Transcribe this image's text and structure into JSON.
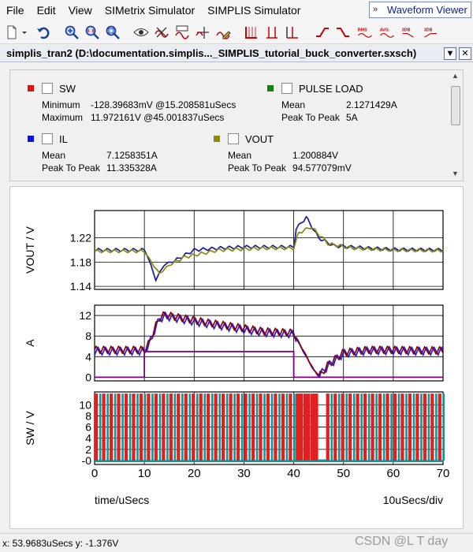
{
  "menu": {
    "items": [
      "File",
      "Edit",
      "View",
      "SIMetrix Simulator",
      "SIMPLIS Simulator"
    ],
    "waveform_viewer": "Waveform Viewer"
  },
  "toolbar": {
    "rms_label": "RMS",
    "avg_label": "AVG",
    "db_label": "3DB",
    "db2_label": "3DB",
    "icons": [
      "new-icon",
      "dropdown-icon",
      "undo-icon",
      "zoom-in-icon",
      "zoom-fit-icon",
      "zoom-box-icon",
      "eye-icon",
      "delete-curve-icon",
      "rename-curve-icon",
      "add-axis-icon",
      "edit-icon",
      "add-grid-icon",
      "cursor-icon",
      "cursor-2-icon",
      "table-icon",
      "rise-icon",
      "fall-icon",
      "rms-icon",
      "avg-icon",
      "3db-icon",
      "3db-2-icon"
    ]
  },
  "window": {
    "title": "simplis_tran2 (D:\\documentation.simplis..._SIMPLIS_tutorial_buck_converter.sxsch)"
  },
  "legend": {
    "sw": {
      "name": "SW",
      "color": "#e01010",
      "rows": [
        {
          "k": "Minimum",
          "v": "-128.39683mV @15.208581uSecs"
        },
        {
          "k": "Maximum",
          "v": "11.972161V @45.001837uSecs"
        }
      ]
    },
    "pulse": {
      "name": "PULSE LOAD",
      "color": "#108010",
      "rows": [
        {
          "k": "Mean",
          "v": "2.1271429A"
        },
        {
          "k": "Peak To Peak",
          "v": "5A"
        }
      ]
    },
    "il": {
      "name": "IL",
      "color": "#1010e0",
      "rows": [
        {
          "k": "Mean",
          "v": "7.1258351A"
        },
        {
          "k": "Peak To Peak",
          "v": "11.335328A"
        }
      ]
    },
    "vout": {
      "name": "VOUT",
      "color": "#8a8a10",
      "rows": [
        {
          "k": "Mean",
          "v": "1.200884V"
        },
        {
          "k": "Peak To Peak",
          "v": "94.577079mV"
        }
      ]
    }
  },
  "chart_data": [
    {
      "type": "line",
      "ylabel": "VOUT / V",
      "ylim": [
        1.135,
        1.265
      ],
      "yticks": [
        "1.14",
        "1.18",
        "1.22"
      ],
      "ytick_values": [
        1.14,
        1.18,
        1.22
      ],
      "xlim": [
        0,
        70
      ],
      "series": [
        {
          "color": "#1a1a9a",
          "x": [
            0,
            10,
            10.5,
            12.3,
            14,
            16,
            20,
            25,
            30,
            35,
            40,
            40.5,
            42.5,
            45,
            48,
            55,
            60,
            70
          ],
          "y": [
            1.2,
            1.2,
            1.193,
            1.151,
            1.176,
            1.182,
            1.2,
            1.203,
            1.205,
            1.205,
            1.205,
            1.235,
            1.254,
            1.22,
            1.207,
            1.203,
            1.201,
            1.2
          ]
        },
        {
          "color": "#8a8a10",
          "x": [
            0,
            10,
            11,
            13,
            15,
            18,
            25,
            35,
            40,
            41,
            43.5,
            47,
            52,
            60,
            70
          ],
          "y": [
            1.198,
            1.198,
            1.185,
            1.161,
            1.175,
            1.188,
            1.2,
            1.203,
            1.203,
            1.228,
            1.238,
            1.21,
            1.203,
            1.2,
            1.199
          ]
        }
      ]
    },
    {
      "type": "line",
      "ylabel": "A",
      "ylim": [
        -0.7,
        14
      ],
      "yticks": [
        "0",
        "4",
        "8",
        "12"
      ],
      "ytick_values": [
        0,
        4,
        8,
        12
      ],
      "xlim": [
        0,
        70
      ],
      "series": [
        {
          "color": "#1a1aff",
          "x": [
            0,
            10,
            11,
            12,
            13,
            14,
            18,
            22,
            26,
            30,
            34,
            36,
            38,
            40,
            42,
            44,
            45,
            47,
            50,
            55,
            60,
            65,
            70
          ],
          "y": [
            5.1,
            5.1,
            6.5,
            9.1,
            11.2,
            11.9,
            11.2,
            10.5,
            9.9,
            9.3,
            8.7,
            8.6,
            8.5,
            8.4,
            4.9,
            1.4,
            0.2,
            2.3,
            4.6,
            5.2,
            5.2,
            5.1,
            5.1
          ]
        },
        {
          "color": "#8b0000",
          "x": [
            0,
            10,
            11,
            12,
            13,
            14,
            18,
            22,
            26,
            30,
            34,
            36,
            38,
            40,
            42,
            44,
            45.2,
            47,
            50,
            55,
            60,
            65,
            70
          ],
          "y": [
            5.3,
            5.3,
            6.7,
            9.3,
            11.5,
            12.1,
            11.4,
            10.7,
            10.1,
            9.5,
            8.9,
            8.8,
            8.7,
            8.6,
            5.1,
            1.5,
            0.3,
            2.5,
            4.8,
            5.3,
            5.3,
            5.2,
            5.2
          ]
        },
        {
          "color": "#800080",
          "x": [
            0,
            10,
            10,
            40,
            40,
            70
          ],
          "y": [
            0,
            0,
            5,
            5,
            0,
            0
          ]
        }
      ]
    },
    {
      "type": "line",
      "ylabel": "SW / V",
      "ylim": [
        -0.7,
        12.3
      ],
      "yticks": [
        "-0",
        "2",
        "4",
        "6",
        "8",
        "10"
      ],
      "ytick_values": [
        0,
        2,
        4,
        6,
        8,
        10
      ],
      "xlim": [
        0,
        70
      ],
      "xticks": [
        "0",
        "10",
        "20",
        "30",
        "40",
        "50",
        "60",
        "70"
      ],
      "xtick_values": [
        0,
        10,
        20,
        30,
        40,
        50,
        60,
        70
      ],
      "xlabel": "time/uSecs",
      "xdiv": "10uSecs/div",
      "high": 12,
      "pulses": [
        {
          "a": 0,
          "b": 40.4,
          "red": 0.45,
          "teal": 0.3
        },
        {
          "a": 40.4,
          "b": 45,
          "red": 0.95,
          "teal": 0
        },
        {
          "a": 45,
          "b": 46.5,
          "red": 0,
          "teal": 0
        },
        {
          "a": 46.5,
          "b": 70,
          "red": 0.45,
          "teal": 0.3
        }
      ]
    }
  ],
  "status": {
    "coords": "x: 53.9683uSecs  y: -1.376V"
  },
  "watermark": "CSDN @L T day"
}
